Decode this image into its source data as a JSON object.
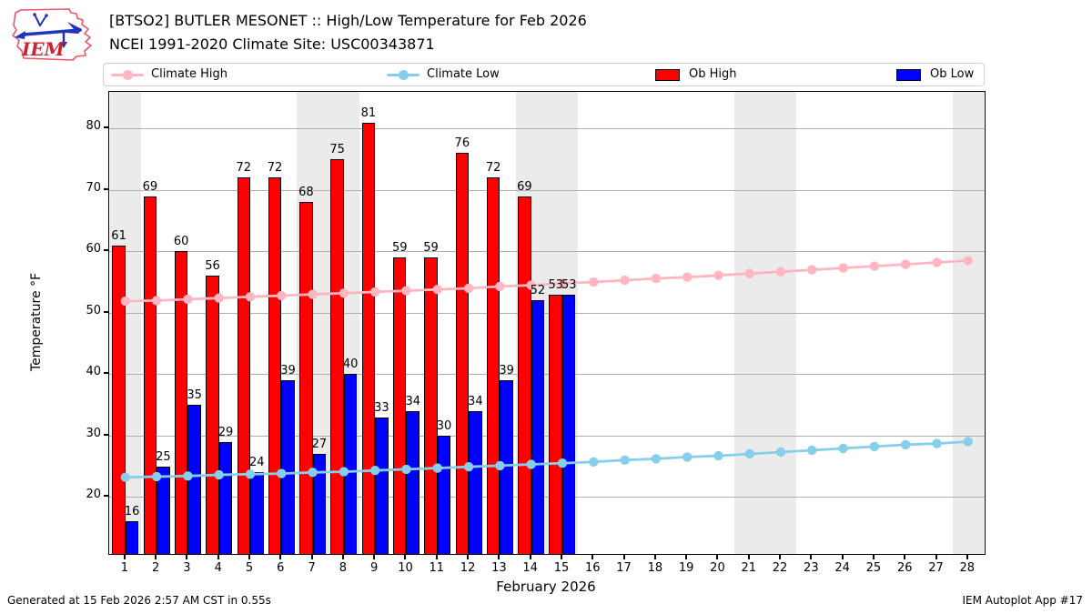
{
  "header": {
    "title_line1": "[BTSO2] BUTLER MESONET :: High/Low Temperature for Feb 2026",
    "title_line2": "NCEI 1991-2020 Climate Site: USC00343871",
    "logo_text": "IEM"
  },
  "footer": {
    "left": "Generated at 15 Feb 2026 2:57 AM CST in 0.55s",
    "right": "IEM Autoplot App #17"
  },
  "legend": [
    {
      "label": "Climate High",
      "type": "line",
      "color": "#ffb6c1"
    },
    {
      "label": "Climate Low",
      "type": "line",
      "color": "#87ceeb"
    },
    {
      "label": "Ob High",
      "type": "patch",
      "color": "#ff0000"
    },
    {
      "label": "Ob Low",
      "type": "patch",
      "color": "#0000ff"
    }
  ],
  "colors": {
    "weekend_band": "#ebebeb",
    "gridline": "#b0b0b0",
    "spine": "#000000",
    "bar_edge": "#000000"
  },
  "chart_data": {
    "type": "bar",
    "title": "[BTSO2] BUTLER MESONET :: High/Low Temperature for Feb 2026",
    "subtitle": "NCEI 1991-2020 Climate Site: USC00343871",
    "xlabel": "February 2026",
    "ylabel": "Temperature °F",
    "x": [
      1,
      2,
      3,
      4,
      5,
      6,
      7,
      8,
      9,
      10,
      11,
      12,
      13,
      14,
      15,
      16,
      17,
      18,
      19,
      20,
      21,
      22,
      23,
      24,
      25,
      26,
      27,
      28
    ],
    "xlim": [
      0.48,
      28.53
    ],
    "ylim": [
      10.7,
      86.0
    ],
    "yticks": [
      20,
      30,
      40,
      50,
      60,
      70,
      80
    ],
    "grid": "horizontal",
    "legend_position": "top",
    "bar_value_labels": true,
    "weekend_days": [
      1,
      7,
      8,
      14,
      15,
      21,
      22,
      28
    ],
    "series": [
      {
        "name": "Climate High",
        "type": "line",
        "color": "#ffb6c1",
        "values": [
          51.9,
          52.0,
          52.2,
          52.4,
          52.6,
          52.8,
          53.0,
          53.2,
          53.4,
          53.6,
          53.8,
          54.0,
          54.3,
          54.5,
          54.8,
          55.0,
          55.3,
          55.6,
          55.8,
          56.1,
          56.4,
          56.7,
          57.0,
          57.3,
          57.6,
          57.9,
          58.2,
          58.5
        ]
      },
      {
        "name": "Climate Low",
        "type": "line",
        "color": "#87ceeb",
        "values": [
          23.2,
          23.3,
          23.4,
          23.6,
          23.7,
          23.8,
          24.0,
          24.1,
          24.3,
          24.5,
          24.7,
          24.9,
          25.1,
          25.3,
          25.5,
          25.7,
          26.0,
          26.2,
          26.5,
          26.7,
          27.0,
          27.3,
          27.6,
          27.9,
          28.2,
          28.5,
          28.7,
          29.0
        ]
      },
      {
        "name": "Ob High",
        "type": "bar",
        "color": "#ff0000",
        "values": [
          61,
          69,
          60,
          56,
          72,
          72,
          68,
          75,
          81,
          59,
          59,
          76,
          72,
          69,
          53
        ]
      },
      {
        "name": "Ob Low",
        "type": "bar",
        "color": "#0000ff",
        "values": [
          16,
          25,
          35,
          29,
          24,
          39,
          27,
          40,
          33,
          34,
          30,
          34,
          39,
          52,
          53
        ]
      }
    ]
  }
}
